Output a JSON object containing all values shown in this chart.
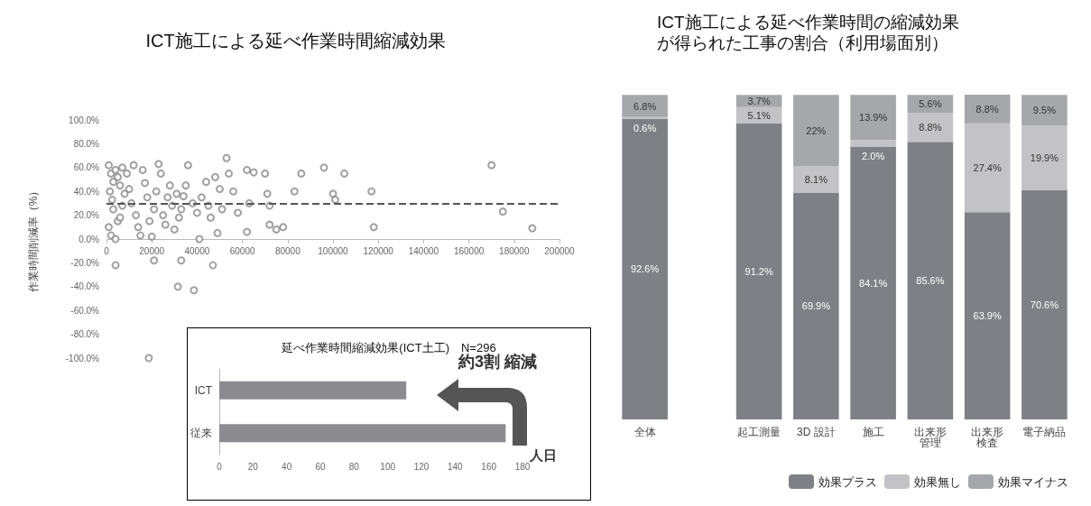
{
  "chart_data": [
    {
      "type": "scatter",
      "title": "ICT施工による延べ作業時間縮減効果",
      "ylabel": "作業時間削減率（%）",
      "color": "#8a8a8a",
      "marker": "circle",
      "grid": false,
      "x": [
        1000,
        2000,
        3000,
        1500,
        2500,
        4000,
        5000,
        6000,
        7000,
        8000,
        3000,
        5000,
        1000,
        2000,
        4000,
        6000,
        7000,
        9000,
        10000,
        11000,
        12000,
        13000,
        14000,
        15000,
        16000,
        17000,
        18000,
        19000,
        20000,
        21000,
        22000,
        23000,
        24000,
        25000,
        26000,
        27000,
        28000,
        29000,
        30000,
        31000,
        32000,
        33000,
        34000,
        35000,
        36000,
        38000,
        40000,
        41000,
        42000,
        44000,
        45000,
        46000,
        48000,
        49000,
        50000,
        51000,
        53000,
        54000,
        56000,
        58000,
        62000,
        62000,
        63000,
        65000,
        70000,
        71000,
        72000,
        72000,
        75000,
        78000,
        86000,
        83000,
        96000,
        100000,
        105000,
        101000,
        117000,
        118000,
        170000,
        175000,
        188000,
        4000,
        21000,
        33000,
        47000,
        31500,
        38600,
        18700
      ],
      "values": [
        62,
        55,
        48,
        40,
        33,
        58,
        52,
        45,
        60,
        38,
        25,
        15,
        10,
        3,
        0,
        18,
        28,
        55,
        42,
        30,
        62,
        20,
        10,
        3,
        58,
        47,
        35,
        15,
        2,
        25,
        40,
        63,
        55,
        20,
        12,
        35,
        45,
        28,
        8,
        38,
        18,
        25,
        36,
        45,
        62,
        30,
        22,
        0,
        35,
        48,
        28,
        18,
        52,
        5,
        42,
        25,
        68,
        55,
        40,
        22,
        58,
        6,
        30,
        56,
        55,
        38,
        28,
        12,
        8,
        10,
        55,
        40,
        60,
        38,
        55,
        33,
        40,
        10,
        62,
        23,
        9,
        -22,
        -18,
        -18,
        -22,
        -40,
        -43,
        -100
      ],
      "xlim": [
        0,
        200000
      ],
      "xticks": [
        0,
        20000,
        40000,
        60000,
        80000,
        100000,
        120000,
        140000,
        160000,
        180000,
        200000
      ],
      "ylim": [
        -100,
        100
      ],
      "yticks": [
        {
          "value": -100,
          "label": "-100.0%"
        },
        {
          "value": -80,
          "label": "-80.0%"
        },
        {
          "value": -60,
          "label": "-60.0%"
        },
        {
          "value": -40,
          "label": "-40.0%"
        },
        {
          "value": -20,
          "label": "-20.0%"
        },
        {
          "value": 0,
          "label": "0.0%"
        },
        {
          "value": 20,
          "label": "20.0%"
        },
        {
          "value": 40,
          "label": "40.0%"
        },
        {
          "value": 60,
          "label": "60.0%"
        },
        {
          "value": 80,
          "label": "80.0%"
        },
        {
          "value": 100,
          "label": "100.0%"
        }
      ],
      "ref_lines": [
        {
          "axis": "y",
          "value": 30,
          "line_style": "dashed",
          "color": "#555555"
        }
      ]
    },
    {
      "type": "bar",
      "orientation": "horizontal",
      "title": "延べ作業時間縮減効果(ICT土工)　N=296",
      "categories": [
        "ICT",
        "従来"
      ],
      "values": [
        111,
        170
      ],
      "color": "#8c8c90",
      "xlim": [
        0,
        180
      ],
      "xticks": [
        0,
        20,
        40,
        60,
        80,
        100,
        120,
        140,
        160,
        180
      ],
      "xlabel": "人日",
      "annotations": [
        "約3割 縮減"
      ],
      "grid": false
    },
    {
      "type": "bar",
      "stacked": true,
      "title": "ICT施工による延べ作業時間の縮減効果が得られた工事の割合（利用場面別）",
      "categories": [
        "全体",
        null,
        "起工測量",
        "3D 設計",
        "施工",
        "出来形管理",
        "出来形検査",
        "電子納品"
      ],
      "legend": "bottom right",
      "grid": false,
      "series": [
        {
          "name": "効果プラス",
          "color": "#7f8085",
          "values": [
            92.6,
            null,
            91.2,
            69.9,
            84.1,
            85.6,
            63.9,
            70.6
          ],
          "value_labels": [
            "92.6%",
            null,
            "91.2%",
            "69.9%",
            "84.1%",
            "85.6%",
            "63.9%",
            "70.6%"
          ]
        },
        {
          "name": "効果無し",
          "color": "#c3c3c7",
          "values": [
            0.6,
            null,
            5.1,
            8.1,
            2.0,
            8.8,
            27.4,
            19.9
          ],
          "value_labels": [
            "0.6%",
            null,
            "5.1%",
            "8.1%",
            "2.0%",
            "8.8%",
            "27.4%",
            "19.9%"
          ]
        },
        {
          "name": "効果マイナス",
          "color": "#a6a7ab",
          "values": [
            6.8,
            null,
            3.7,
            22,
            13.9,
            5.6,
            8.8,
            9.5
          ],
          "value_labels": [
            "6.8%",
            null,
            "3.7%",
            "22%",
            "13.9%",
            "5.6%",
            "8.8%",
            "9.5%"
          ]
        }
      ]
    }
  ]
}
